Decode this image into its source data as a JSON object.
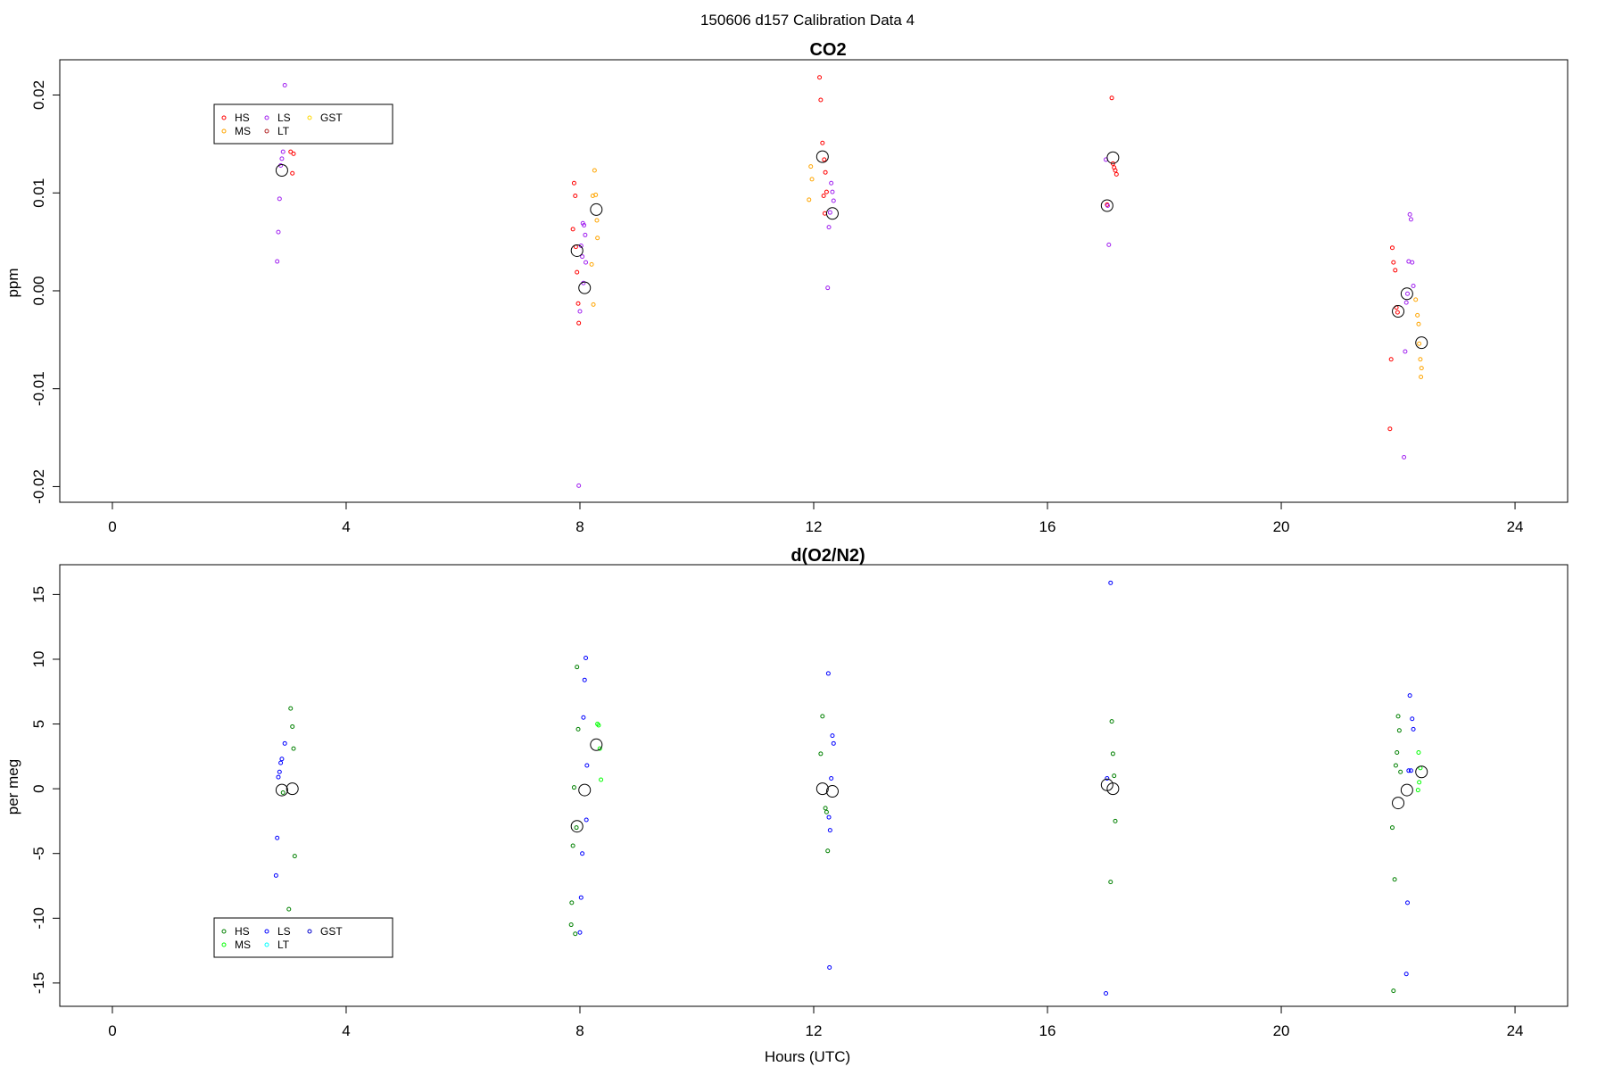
{
  "figure_title": "150606   d157   Calibration Data 4",
  "x_axis_title": "Hours (UTC)",
  "chart_data": [
    {
      "type": "scatter",
      "title": "CO2",
      "xlabel": "",
      "ylabel": "ppm",
      "xlim": [
        -0.9,
        24.9
      ],
      "ylim": [
        -0.0216,
        0.0236
      ],
      "xticks": [
        0,
        4,
        8,
        12,
        16,
        20,
        24
      ],
      "yticks": [
        -0.02,
        -0.01,
        0.0,
        0.01,
        0.02
      ],
      "ytick_labels": [
        "-0.02",
        "-0.01",
        "0.00",
        "0.01",
        "0.02"
      ],
      "legend": {
        "position": "top-left",
        "entries": [
          {
            "name": "HS",
            "color": "#ff0000"
          },
          {
            "name": "MS",
            "color": "#ffa500"
          },
          {
            "name": "LS",
            "color": "#a020f0"
          },
          {
            "name": "LT",
            "color": "#b22222"
          },
          {
            "name": "GST",
            "color": "#ffd700"
          }
        ]
      },
      "series": [
        {
          "name": "HS",
          "color": "#ff0000",
          "points": [
            [
              3.05,
              0.0142
            ],
            [
              3.1,
              0.014
            ],
            [
              3.08,
              0.012
            ],
            [
              7.9,
              0.011
            ],
            [
              7.92,
              0.0097
            ],
            [
              7.88,
              0.0063
            ],
            [
              7.93,
              0.0045
            ],
            [
              7.95,
              0.0019
            ],
            [
              7.97,
              -0.0013
            ],
            [
              7.98,
              -0.0033
            ],
            [
              12.1,
              0.0218
            ],
            [
              12.12,
              0.0195
            ],
            [
              12.15,
              0.0151
            ],
            [
              12.18,
              0.0134
            ],
            [
              12.2,
              0.0121
            ],
            [
              12.22,
              0.0101
            ],
            [
              12.17,
              0.0097
            ],
            [
              12.19,
              0.0079
            ],
            [
              17.1,
              0.0197
            ],
            [
              17.12,
              0.013
            ],
            [
              17.14,
              0.0126
            ],
            [
              17.16,
              0.0123
            ],
            [
              17.18,
              0.0119
            ],
            [
              17.02,
              0.0088
            ],
            [
              21.9,
              0.0044
            ],
            [
              21.92,
              0.0029
            ],
            [
              21.95,
              0.0021
            ],
            [
              21.97,
              -0.0017
            ],
            [
              21.99,
              -0.0022
            ],
            [
              21.88,
              -0.007
            ],
            [
              21.86,
              -0.0141
            ]
          ]
        },
        {
          "name": "MS",
          "color": "#ffa500",
          "points": [
            [
              8.25,
              0.0123
            ],
            [
              8.27,
              0.0098
            ],
            [
              8.22,
              0.0097
            ],
            [
              8.29,
              0.0072
            ],
            [
              8.3,
              0.0054
            ],
            [
              8.2,
              0.0027
            ],
            [
              8.23,
              -0.0014
            ],
            [
              11.95,
              0.0127
            ],
            [
              11.97,
              0.0114
            ],
            [
              11.92,
              0.0093
            ],
            [
              22.3,
              -0.0009
            ],
            [
              22.33,
              -0.0025
            ],
            [
              22.35,
              -0.0034
            ],
            [
              22.36,
              -0.0054
            ],
            [
              22.38,
              -0.007
            ],
            [
              22.4,
              -0.0079
            ],
            [
              22.39,
              -0.0088
            ]
          ]
        },
        {
          "name": "LS",
          "color": "#a020f0",
          "points": [
            [
              2.95,
              0.021
            ],
            [
              2.92,
              0.0142
            ],
            [
              2.9,
              0.0135
            ],
            [
              2.88,
              0.0128
            ],
            [
              2.86,
              0.0094
            ],
            [
              2.84,
              0.006
            ],
            [
              2.82,
              0.003
            ],
            [
              8.05,
              0.0069
            ],
            [
              8.07,
              0.0067
            ],
            [
              8.09,
              0.0057
            ],
            [
              8.02,
              0.0046
            ],
            [
              8.04,
              0.0035
            ],
            [
              8.1,
              0.0029
            ],
            [
              8.06,
              0.0008
            ],
            [
              8.0,
              -0.0021
            ],
            [
              7.98,
              -0.0199
            ],
            [
              12.3,
              0.011
            ],
            [
              12.32,
              0.0101
            ],
            [
              12.34,
              0.0092
            ],
            [
              12.28,
              0.008
            ],
            [
              12.26,
              0.0065
            ],
            [
              12.24,
              0.0003
            ],
            [
              17.0,
              0.0134
            ],
            [
              17.03,
              0.0087
            ],
            [
              17.05,
              0.0047
            ],
            [
              22.2,
              0.0078
            ],
            [
              22.22,
              0.0073
            ],
            [
              22.18,
              0.003
            ],
            [
              22.24,
              0.0029
            ],
            [
              22.26,
              0.0005
            ],
            [
              22.16,
              -0.0003
            ],
            [
              22.14,
              -0.0012
            ],
            [
              22.12,
              -0.0062
            ],
            [
              22.1,
              -0.017
            ]
          ]
        }
      ],
      "means": [
        [
          2.9,
          0.0123
        ],
        [
          7.95,
          0.0041
        ],
        [
          8.08,
          0.0003
        ],
        [
          8.28,
          0.0083
        ],
        [
          12.15,
          0.0137
        ],
        [
          12.32,
          0.0079
        ],
        [
          17.02,
          0.0087
        ],
        [
          17.12,
          0.0136
        ],
        [
          22.0,
          -0.0021
        ],
        [
          22.15,
          -0.0003
        ],
        [
          22.4,
          -0.0053
        ]
      ]
    },
    {
      "type": "scatter",
      "title": "d(O2/N2)",
      "xlabel": "Hours (UTC)",
      "ylabel": "per meg",
      "xlim": [
        -0.9,
        24.9
      ],
      "ylim": [
        -16.8,
        17.3
      ],
      "xticks": [
        0,
        4,
        8,
        12,
        16,
        20,
        24
      ],
      "yticks": [
        -15,
        -10,
        -5,
        0,
        5,
        10,
        15
      ],
      "ytick_labels": [
        "-15",
        "-10",
        "-5",
        "0",
        "5",
        "10",
        "15"
      ],
      "legend": {
        "position": "bottom-left",
        "entries": [
          {
            "name": "HS",
            "color": "#008000"
          },
          {
            "name": "MS",
            "color": "#00ff00"
          },
          {
            "name": "LS",
            "color": "#0000ff"
          },
          {
            "name": "LT",
            "color": "#00ffff"
          },
          {
            "name": "GST",
            "color": "#0000cd"
          }
        ]
      },
      "series": [
        {
          "name": "HS",
          "color": "#008000",
          "points": [
            [
              3.05,
              6.2
            ],
            [
              3.08,
              4.8
            ],
            [
              3.1,
              3.1
            ],
            [
              3.12,
              -5.2
            ],
            [
              3.02,
              -9.3
            ],
            [
              2.92,
              -0.3
            ],
            [
              7.95,
              9.4
            ],
            [
              7.97,
              4.6
            ],
            [
              7.9,
              0.1
            ],
            [
              7.88,
              -4.4
            ],
            [
              7.86,
              -8.8
            ],
            [
              7.85,
              -10.5
            ],
            [
              7.92,
              -11.2
            ],
            [
              7.94,
              -3.0
            ],
            [
              12.15,
              5.6
            ],
            [
              12.12,
              2.7
            ],
            [
              12.2,
              -1.5
            ],
            [
              12.22,
              -1.8
            ],
            [
              12.24,
              -4.8
            ],
            [
              17.1,
              5.2
            ],
            [
              17.12,
              2.7
            ],
            [
              17.14,
              1.0
            ],
            [
              17.16,
              -2.5
            ],
            [
              17.08,
              -7.2
            ],
            [
              22.0,
              5.6
            ],
            [
              22.02,
              4.5
            ],
            [
              21.98,
              2.8
            ],
            [
              21.96,
              1.8
            ],
            [
              22.04,
              1.3
            ],
            [
              21.94,
              -7.0
            ],
            [
              21.92,
              -15.6
            ],
            [
              21.9,
              -3.0
            ]
          ]
        },
        {
          "name": "MS",
          "color": "#00ff00",
          "points": [
            [
              8.3,
              5.0
            ],
            [
              8.32,
              4.9
            ],
            [
              8.34,
              3.1
            ],
            [
              8.36,
              0.7
            ],
            [
              22.35,
              2.8
            ],
            [
              22.38,
              1.6
            ],
            [
              22.36,
              0.5
            ],
            [
              22.34,
              -0.1
            ]
          ]
        },
        {
          "name": "LS",
          "color": "#0000ff",
          "points": [
            [
              2.95,
              3.5
            ],
            [
              2.9,
              2.3
            ],
            [
              2.88,
              2.0
            ],
            [
              2.86,
              1.3
            ],
            [
              2.84,
              0.9
            ],
            [
              2.82,
              -3.8
            ],
            [
              2.8,
              -6.7
            ],
            [
              8.1,
              10.1
            ],
            [
              8.08,
              8.4
            ],
            [
              8.06,
              5.5
            ],
            [
              8.12,
              1.8
            ],
            [
              8.11,
              -2.4
            ],
            [
              8.04,
              -5.0
            ],
            [
              8.02,
              -8.4
            ],
            [
              8.0,
              -11.1
            ],
            [
              12.25,
              8.9
            ],
            [
              12.32,
              4.1
            ],
            [
              12.34,
              3.5
            ],
            [
              12.3,
              0.8
            ],
            [
              12.26,
              -2.2
            ],
            [
              12.28,
              -3.2
            ],
            [
              12.27,
              -13.8
            ],
            [
              17.08,
              15.9
            ],
            [
              17.02,
              0.8
            ],
            [
              17.0,
              -15.8
            ],
            [
              22.2,
              7.2
            ],
            [
              22.24,
              5.4
            ],
            [
              22.26,
              4.6
            ],
            [
              22.18,
              1.4
            ],
            [
              22.22,
              1.4
            ],
            [
              22.16,
              -8.8
            ],
            [
              22.14,
              -14.3
            ]
          ]
        }
      ],
      "means": [
        [
          2.9,
          -0.1
        ],
        [
          3.08,
          0.0
        ],
        [
          8.08,
          -0.1
        ],
        [
          7.95,
          -2.9
        ],
        [
          8.28,
          3.4
        ],
        [
          12.15,
          -0.0
        ],
        [
          12.32,
          -0.2
        ],
        [
          17.02,
          0.3
        ],
        [
          17.12,
          0.0
        ],
        [
          22.0,
          -1.1
        ],
        [
          22.15,
          -0.1
        ],
        [
          22.4,
          1.3
        ]
      ]
    }
  ]
}
